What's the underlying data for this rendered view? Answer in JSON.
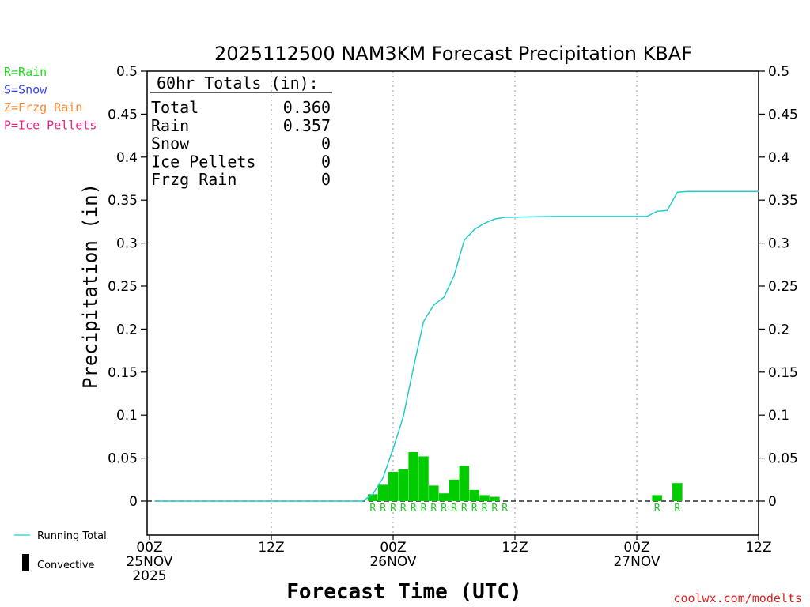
{
  "chart_data": {
    "type": "bar",
    "title": "2025112500 NAM3KM Forecast Precipitation KBAF",
    "xlabel": "Forecast Time (UTC)",
    "ylabel": "Precipitation (in)",
    "ylim": [
      -0.04,
      0.5
    ],
    "xlim_hours": [
      0,
      60
    ],
    "y_ticks": [
      0,
      0.05,
      0.1,
      0.15,
      0.2,
      0.25,
      0.3,
      0.35,
      0.4,
      0.45,
      0.5
    ],
    "y_tick_labels": [
      "0",
      "0.05",
      "0.1",
      "0.15",
      "0.2",
      "0.25",
      "0.3",
      "0.35",
      "0.4",
      "0.45",
      "0.5"
    ],
    "x_ticks": [
      {
        "hour": 0,
        "lines": [
          "00Z",
          "25NOV",
          "2025"
        ]
      },
      {
        "hour": 12,
        "lines": [
          "12Z"
        ]
      },
      {
        "hour": 24,
        "lines": [
          "00Z",
          "26NOV"
        ]
      },
      {
        "hour": 36,
        "lines": [
          "12Z"
        ]
      },
      {
        "hour": 48,
        "lines": [
          "00Z",
          "27NOV"
        ]
      },
      {
        "hour": 60,
        "lines": [
          "12Z"
        ]
      }
    ],
    "grid_hours": [
      12,
      24,
      36,
      48
    ],
    "legend_types": [
      {
        "label": "R=Rain",
        "color": "#22dd22"
      },
      {
        "label": "S=Snow",
        "color": "#3344ee"
      },
      {
        "label": "Z=Frzg Rain",
        "color": "#ff8833"
      },
      {
        "label": "P=Ice Pellets",
        "color": "#ee2288"
      }
    ],
    "legend_lines": [
      {
        "label": "Running Total",
        "color": "#22cccc",
        "kind": "line"
      },
      {
        "label": "Convective",
        "color": "#000000",
        "kind": "bar"
      }
    ],
    "totals": {
      "header": "60hr Totals (in):",
      "rows": [
        {
          "label": "Total",
          "value": "0.360"
        },
        {
          "label": "Rain",
          "value": "0.357"
        },
        {
          "label": "Snow",
          "value": "0"
        },
        {
          "label": "Ice Pellets",
          "value": "0"
        },
        {
          "label": "Frzg Rain",
          "value": "0"
        }
      ]
    },
    "hourly_precip": {
      "name": "Rain",
      "color": "#00cc00",
      "hours": [
        22,
        23,
        24,
        25,
        26,
        27,
        28,
        29,
        30,
        31,
        32,
        33,
        34,
        35,
        50,
        52
      ],
      "values": [
        0.008,
        0.019,
        0.034,
        0.037,
        0.057,
        0.052,
        0.018,
        0.009,
        0.025,
        0.041,
        0.013,
        0.007,
        0.005,
        0.0,
        0.007,
        0.021
      ],
      "labels": [
        "R",
        "R",
        "R",
        "R",
        "R",
        "R",
        "R",
        "R",
        "R",
        "R",
        "R",
        "R",
        "R",
        "R",
        "R",
        "R"
      ]
    },
    "running_total": {
      "name": "Running Total",
      "color": "#22cccc",
      "x": [
        0.5,
        21,
        22,
        23,
        24,
        25,
        26,
        27,
        28,
        29,
        30,
        31,
        32,
        33,
        34,
        35,
        40,
        49,
        50,
        51,
        52,
        53,
        60
      ],
      "y": [
        0,
        0,
        0.008,
        0.027,
        0.061,
        0.098,
        0.155,
        0.209,
        0.228,
        0.237,
        0.262,
        0.303,
        0.316,
        0.323,
        0.328,
        0.33,
        0.331,
        0.331,
        0.337,
        0.338,
        0.359,
        0.36,
        0.36
      ]
    },
    "credit": "coolwx.com/modelts"
  }
}
